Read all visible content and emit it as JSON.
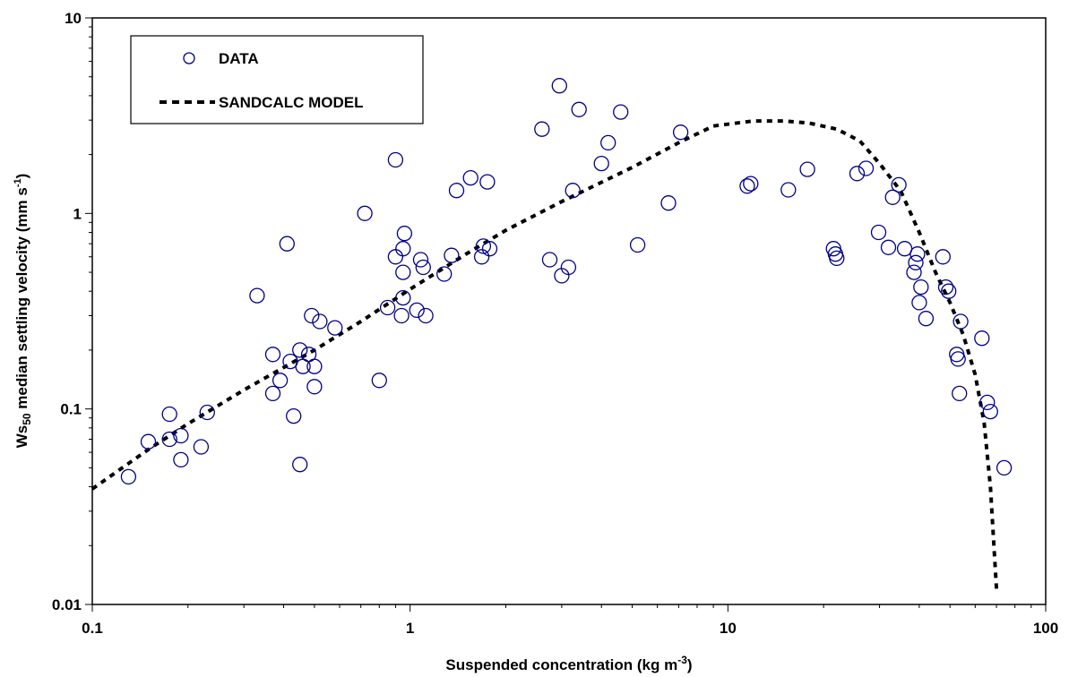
{
  "chart_data": {
    "type": "scatter",
    "x_scale": "log",
    "y_scale": "log",
    "xlim": [
      0.1,
      100
    ],
    "ylim": [
      0.01,
      10
    ],
    "xticks": [
      "0.1",
      "1",
      "10",
      "100"
    ],
    "yticks": [
      "0.01",
      "0.1",
      "1",
      "10"
    ],
    "xlabel": "Suspended concentration (kg m",
    "xlabel_sup": "-3",
    "xlabel_end": ")",
    "ylabel_main": "Ws",
    "ylabel_sub": "50",
    "ylabel_rest": " median settling velocity (mm s",
    "ylabel_sup": "-1",
    "ylabel_end": ")",
    "grid": false,
    "legend_position": "top-left",
    "colors": {
      "data": "#00008b",
      "model": "#000000"
    },
    "series": [
      {
        "name": "DATA",
        "style": "open-circle",
        "points": [
          [
            0.13,
            0.045
          ],
          [
            0.15,
            0.068
          ],
          [
            0.175,
            0.07
          ],
          [
            0.175,
            0.094
          ],
          [
            0.19,
            0.073
          ],
          [
            0.19,
            0.055
          ],
          [
            0.22,
            0.064
          ],
          [
            0.23,
            0.096
          ],
          [
            0.33,
            0.38
          ],
          [
            0.37,
            0.19
          ],
          [
            0.37,
            0.12
          ],
          [
            0.39,
            0.14
          ],
          [
            0.41,
            0.7
          ],
          [
            0.42,
            0.175
          ],
          [
            0.43,
            0.092
          ],
          [
            0.45,
            0.2
          ],
          [
            0.45,
            0.052
          ],
          [
            0.46,
            0.165
          ],
          [
            0.48,
            0.19
          ],
          [
            0.49,
            0.3
          ],
          [
            0.5,
            0.13
          ],
          [
            0.5,
            0.165
          ],
          [
            0.52,
            0.28
          ],
          [
            0.58,
            0.26
          ],
          [
            0.72,
            1.0
          ],
          [
            0.8,
            0.14
          ],
          [
            0.85,
            0.33
          ],
          [
            0.9,
            1.88
          ],
          [
            0.9,
            0.6
          ],
          [
            0.94,
            0.3
          ],
          [
            0.95,
            0.37
          ],
          [
            0.95,
            0.5
          ],
          [
            0.95,
            0.66
          ],
          [
            0.96,
            0.79
          ],
          [
            1.05,
            0.32
          ],
          [
            1.08,
            0.58
          ],
          [
            1.1,
            0.53
          ],
          [
            1.12,
            0.3
          ],
          [
            1.28,
            0.49
          ],
          [
            1.35,
            0.61
          ],
          [
            1.4,
            1.31
          ],
          [
            1.55,
            1.52
          ],
          [
            1.68,
            0.6
          ],
          [
            1.7,
            0.68
          ],
          [
            1.75,
            1.45
          ],
          [
            1.78,
            0.66
          ],
          [
            2.6,
            2.7
          ],
          [
            2.75,
            0.58
          ],
          [
            2.95,
            4.5
          ],
          [
            3.0,
            0.48
          ],
          [
            3.15,
            0.53
          ],
          [
            3.25,
            1.31
          ],
          [
            3.4,
            3.4
          ],
          [
            4.0,
            1.8
          ],
          [
            4.2,
            2.3
          ],
          [
            4.6,
            3.3
          ],
          [
            5.2,
            0.69
          ],
          [
            6.5,
            1.13
          ],
          [
            7.1,
            2.6
          ],
          [
            11.5,
            1.38
          ],
          [
            11.8,
            1.42
          ],
          [
            15.5,
            1.32
          ],
          [
            17.8,
            1.68
          ],
          [
            21.5,
            0.66
          ],
          [
            21.8,
            0.62
          ],
          [
            22.0,
            0.59
          ],
          [
            25.5,
            1.6
          ],
          [
            27.2,
            1.7
          ],
          [
            29.8,
            0.8
          ],
          [
            32.0,
            0.67
          ],
          [
            33.0,
            1.21
          ],
          [
            34.5,
            1.4
          ],
          [
            36.0,
            0.66
          ],
          [
            38.5,
            0.5
          ],
          [
            39.0,
            0.56
          ],
          [
            39.5,
            0.62
          ],
          [
            40.0,
            0.35
          ],
          [
            40.5,
            0.42
          ],
          [
            42.0,
            0.29
          ],
          [
            47.5,
            0.6
          ],
          [
            48.5,
            0.42
          ],
          [
            49.5,
            0.4
          ],
          [
            52.5,
            0.19
          ],
          [
            53.0,
            0.18
          ],
          [
            53.5,
            0.12
          ],
          [
            54.0,
            0.28
          ],
          [
            63.0,
            0.23
          ],
          [
            65.5,
            0.108
          ],
          [
            67.0,
            0.097
          ],
          [
            74.0,
            0.05
          ]
        ]
      },
      {
        "name": "SANDCALC MODEL",
        "style": "dotted-line",
        "points": [
          [
            0.1,
            0.039
          ],
          [
            0.15,
            0.062
          ],
          [
            0.2,
            0.084
          ],
          [
            0.3,
            0.125
          ],
          [
            0.5,
            0.2
          ],
          [
            0.7,
            0.28
          ],
          [
            1.0,
            0.41
          ],
          [
            1.5,
            0.62
          ],
          [
            2.0,
            0.82
          ],
          [
            3.0,
            1.15
          ],
          [
            5.0,
            1.72
          ],
          [
            7.0,
            2.3
          ],
          [
            9.0,
            2.8
          ],
          [
            12.0,
            2.97
          ],
          [
            15.0,
            2.97
          ],
          [
            18.0,
            2.9
          ],
          [
            22.0,
            2.7
          ],
          [
            26.0,
            2.35
          ],
          [
            30.0,
            1.8
          ],
          [
            35.0,
            1.3
          ],
          [
            40.0,
            0.8
          ],
          [
            45.0,
            0.5
          ],
          [
            50.0,
            0.35
          ],
          [
            55.0,
            0.24
          ],
          [
            60.0,
            0.15
          ],
          [
            64.0,
            0.085
          ],
          [
            67.0,
            0.04
          ],
          [
            69.0,
            0.018
          ],
          [
            70.0,
            0.012
          ]
        ]
      }
    ]
  }
}
